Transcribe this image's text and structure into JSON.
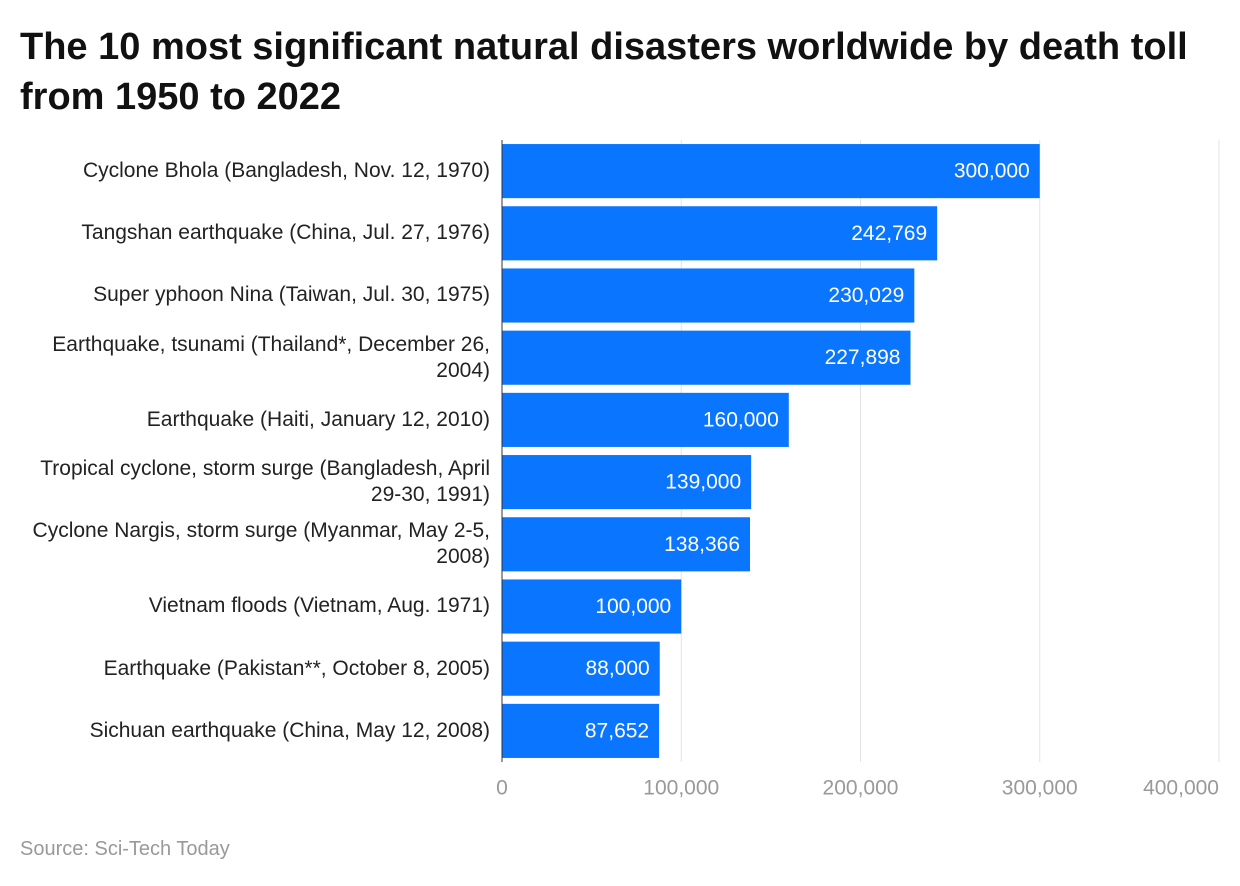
{
  "chart_data": {
    "type": "bar",
    "title": "The 10 most significant natural disasters worldwide by death toll from 1950 to 2022",
    "categories": [
      "Cyclone Bhola (Bangladesh, Nov. 12, 1970)",
      "Tangshan earthquake (China, Jul. 27, 1976)",
      "Super yphoon Nina (Taiwan, Jul. 30, 1975)",
      "Earthquake, tsunami (Thailand*, December 26, 2004)",
      "Earthquake (Haiti, January 12, 2010)",
      "Tropical cyclone, storm surge (Bangladesh, April 29-30, 1991)",
      "Cyclone Nargis, storm surge (Myanmar, May 2-5, 2008)",
      "Vietnam floods (Vietnam, Aug. 1971)",
      "Earthquake (Pakistan**, October 8, 2005)",
      "Sichuan earthquake (China, May 12, 2008)"
    ],
    "values": [
      300000,
      242769,
      230029,
      227898,
      160000,
      139000,
      138366,
      100000,
      88000,
      87652
    ],
    "value_labels": [
      "300,000",
      "242,769",
      "230,029",
      "227,898",
      "160,000",
      "139,000",
      "138,366",
      "100,000",
      "88,000",
      "87,652"
    ],
    "color": "#0a76ff",
    "xlim": [
      0,
      400000
    ],
    "xticks": [
      0,
      {
        "value": 100000,
        "label": "100,000"
      },
      {
        "value": 200000,
        "label": "200,000"
      },
      {
        "value": 300000,
        "label": "300,000"
      },
      {
        "value": 400000,
        "label": "400,000"
      }
    ],
    "grid": true,
    "source": "Source: Sci-Tech Today"
  }
}
